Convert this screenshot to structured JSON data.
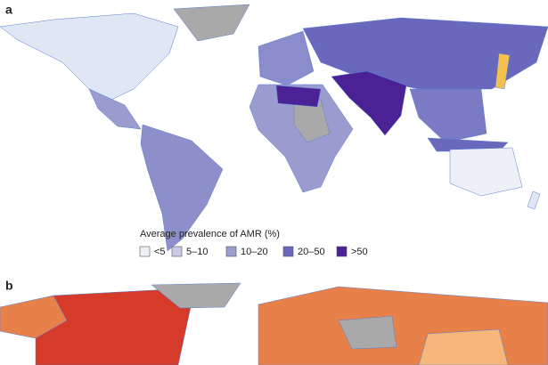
{
  "panels": [
    {
      "label": "a"
    },
    {
      "label": "b"
    }
  ],
  "legend": {
    "title": "Average prevalence of AMR (%)",
    "items": [
      {
        "label": "<5",
        "color": "#eef0f8"
      },
      {
        "label": "5–10",
        "color": "#c9cbe6"
      },
      {
        "label": "10–20",
        "color": "#9a9ccf"
      },
      {
        "label": "20–50",
        "color": "#6a68bd"
      },
      {
        "label": ">50",
        "color": "#4a2296"
      }
    ]
  }
}
